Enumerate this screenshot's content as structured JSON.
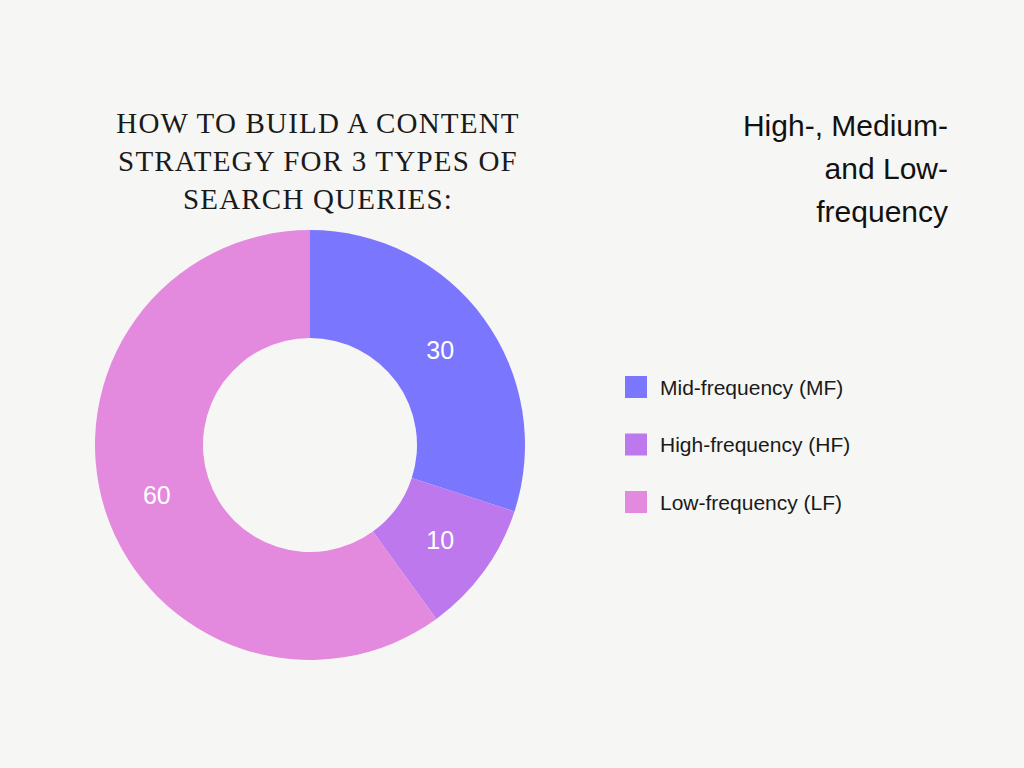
{
  "chart_data": {
    "type": "pie",
    "title": "HOW TO BUILD A CONTENT STRATEGY FOR 3 TYPES OF SEARCH QUERIES:",
    "subtitle": "High-, Medium- and Low-frequency",
    "categories": [
      "Mid-frequency (MF)",
      "High-frequency (HF)",
      "Low-frequency (LF)"
    ],
    "values": [
      30,
      10,
      60
    ],
    "colors": [
      "#7b76fe",
      "#bc78ec",
      "#e38ade"
    ],
    "data_labels": true,
    "legend": "right"
  }
}
